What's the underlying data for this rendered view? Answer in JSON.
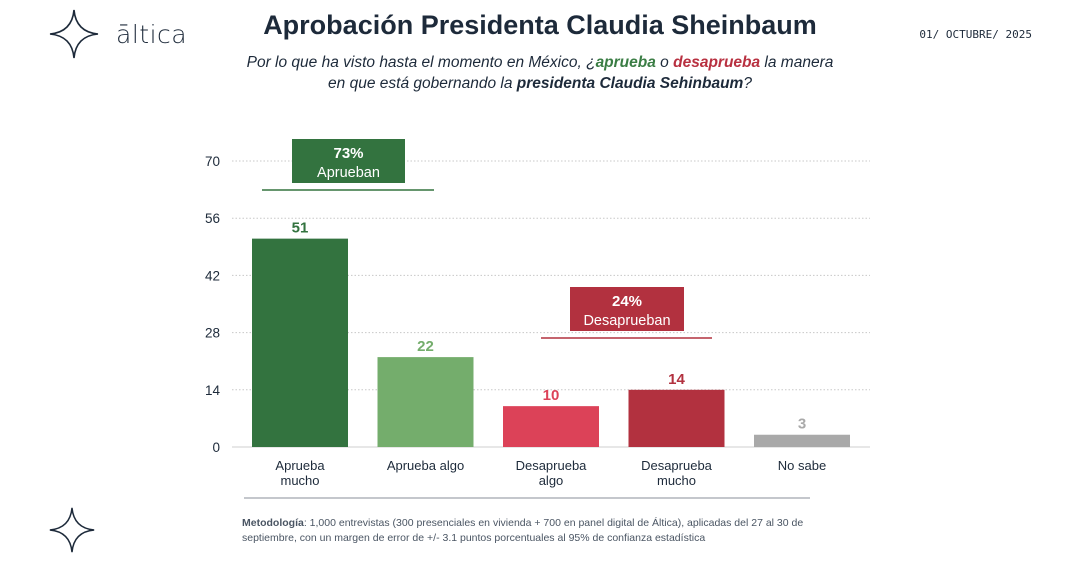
{
  "brand": {
    "name": "āltica"
  },
  "header": {
    "title": "Aprobación Presidenta Claudia Sheinbaum",
    "date": "01/ OCTUBRE/ 2025"
  },
  "subtitle": {
    "part1": "Por lo que ha visto hasta el momento en México, ¿",
    "aprueba": "aprueba",
    "o": " o ",
    "desaprueba": "desaprueba",
    "part2": " la manera en que está gobernando la ",
    "presidenta": "presidenta Claudia Sehinbaum",
    "end": "?"
  },
  "chart_data": {
    "type": "bar",
    "categories": [
      "Aprueba mucho",
      "Aprueba algo",
      "Desaprueba algo",
      "Desaprueba mucho",
      "No sabe"
    ],
    "values": [
      51,
      22,
      10,
      14,
      3
    ],
    "ylim": [
      0,
      70
    ],
    "yticks": [
      0,
      14,
      28,
      42,
      56,
      70
    ],
    "grid": true,
    "colors": [
      "#33733f",
      "#74ad6c",
      "#dc4258",
      "#b2313f",
      "#a9a9a9"
    ],
    "annotations": [
      {
        "pct": "73%",
        "label": "Aprueban",
        "color": "#33733f",
        "categories": [
          0
        ]
      },
      {
        "pct": "24%",
        "label": "Desaprueban",
        "color": "#b2313f",
        "categories": [
          2,
          3
        ]
      }
    ]
  },
  "methodology": {
    "label": "Metodología",
    "text": ": 1,000 entrevistas (300 presenciales en vivienda + 700 en panel digital de Áltica), aplicadas del 27 al 30 de septiembre, con un margen de error de +/- 3.1 puntos porcentuales al 95% de confianza estadística"
  }
}
